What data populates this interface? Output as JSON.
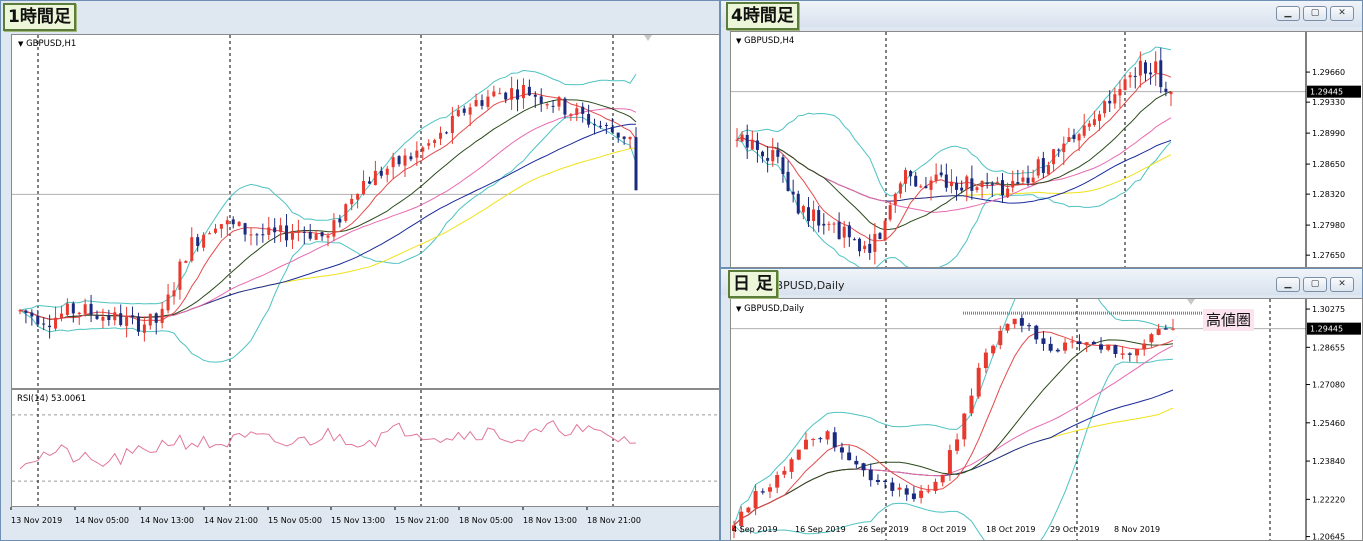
{
  "windows": {
    "h1": {
      "chart_title": "GBPUSD,H1",
      "tag": "1時間足",
      "rsi_label": "RSI(14) 53.0061"
    },
    "h4": {
      "chart_title": "GBPUSD,H4",
      "tag": "4時間足",
      "price_tag": "1.29445"
    },
    "daily": {
      "window_title": "GBPUSD,Daily",
      "chart_title": "GBPUSD,Daily",
      "tag": "日 足",
      "annotation": "高値圏",
      "price_tag": "1.29445"
    }
  },
  "colors": {
    "bull": "#e8392f",
    "bear": "#1a2a7e",
    "bb": "#4fc2c2",
    "ma_red": "#e24b4b",
    "ma_green": "#2a4a1a",
    "ma_pink": "#e86ab0",
    "ma_navy": "#1a2a9a",
    "ma_yellow": "#f0e21a",
    "rsi": "#e07898",
    "resistance": "#e0508a"
  },
  "chart_data": [
    {
      "type": "candlestick",
      "panel": "GBPUSD,H1",
      "x": [
        "13 Nov 2019",
        "14 Nov 05:00",
        "14 Nov 13:00",
        "14 Nov 21:00",
        "15 Nov 05:00",
        "15 Nov 13:00",
        "15 Nov 21:00",
        "18 Nov 05:00",
        "18 Nov 13:00",
        "18 Nov 21:00"
      ],
      "ylim": [
        1.281,
        1.2985
      ],
      "close_start": 1.2845,
      "close_end": 1.2908,
      "current_price": 1.2906,
      "indicator": {
        "name": "RSI(14)",
        "last": 53.0061,
        "levels": [
          70,
          30
        ]
      }
    },
    {
      "type": "candlestick",
      "panel": "GBPUSD,H4",
      "y_ticks": [
        "1.29660",
        "1.29330",
        "1.28990",
        "1.28650",
        "1.28320",
        "1.27980",
        "1.27650"
      ],
      "ylim": [
        1.2752,
        1.301
      ],
      "current_price": "1.29445"
    },
    {
      "type": "candlestick",
      "panel": "GBPUSD,Daily",
      "x": [
        "4 Sep 2019",
        "16 Sep 2019",
        "26 Sep 2019",
        "8 Oct 2019",
        "18 Oct 2019",
        "29 Oct 2019",
        "8 Nov 2019"
      ],
      "y_ticks": [
        "1.30275",
        "1.28655",
        "1.27080",
        "1.25460",
        "1.23840",
        "1.22220",
        "1.20645"
      ],
      "ylim": [
        1.205,
        1.307
      ],
      "current_price": "1.29445",
      "annotations": [
        "高値圏"
      ]
    }
  ]
}
